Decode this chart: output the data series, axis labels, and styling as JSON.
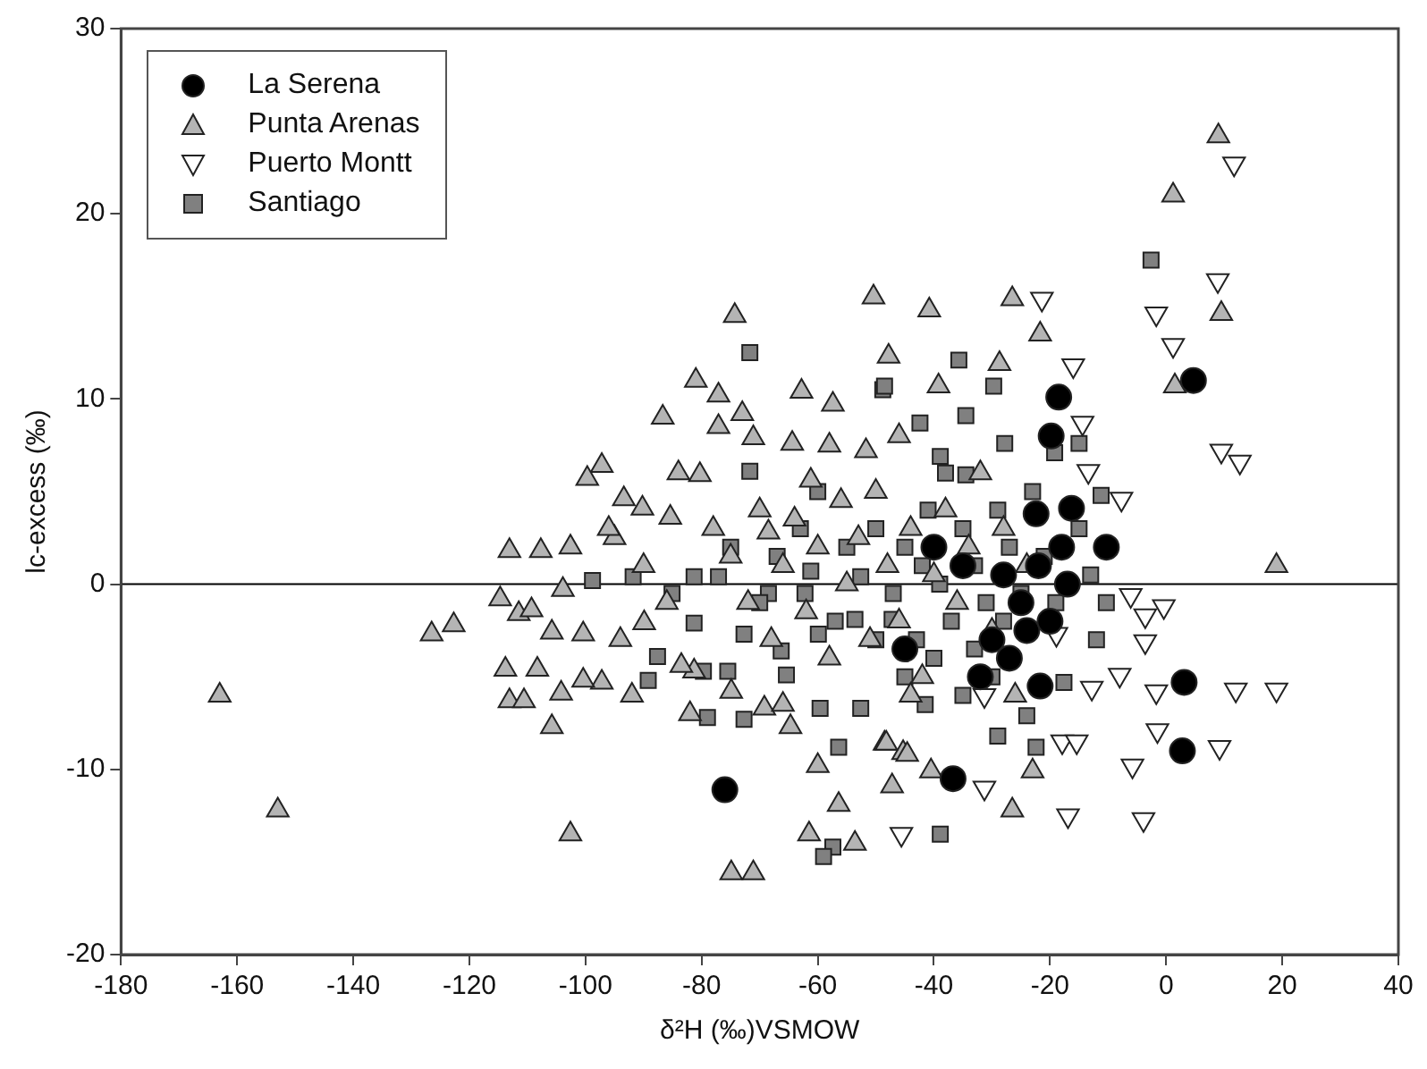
{
  "chart_data": {
    "type": "scatter",
    "xlabel": "δ²H (‰)VSMOW",
    "ylabel": "lc-excess (‰)",
    "xlim": [
      -180,
      40
    ],
    "xticks": [
      -180,
      -160,
      -140,
      -120,
      -100,
      -80,
      -60,
      -40,
      -20,
      0,
      20,
      40
    ],
    "ylim": [
      -20,
      30
    ],
    "yticks": [
      -20,
      -10,
      0,
      10,
      20,
      30
    ],
    "grid": false,
    "legend": "top left",
    "ref_lines": [
      {
        "axis": "y",
        "value": 0,
        "color": "#000000"
      }
    ],
    "series": [
      {
        "name": "La Serena",
        "color": "#000000",
        "marker": "circle",
        "x": [
          -76,
          -36.7,
          -18.5,
          4.7,
          -19.8,
          -16.3,
          -10.3,
          -22.4,
          -17,
          -21.7,
          3.1,
          2.8,
          -25,
          -28,
          -30,
          -32,
          -22,
          -45,
          -40,
          -35,
          -24,
          -27,
          -20,
          -18
        ],
        "values": [
          -11.1,
          -10.5,
          10.1,
          11.0,
          8.0,
          4.1,
          2.0,
          3.8,
          0,
          -5.5,
          -5.3,
          -9.0,
          -1,
          0.5,
          -3,
          -5,
          1,
          -3.5,
          2,
          1,
          -2.5,
          -4,
          -2,
          2
        ]
      },
      {
        "name": "Punta Arenas",
        "color": "#b4b4b4",
        "marker": "triangle",
        "x": [
          -163,
          -153,
          1.2,
          9.5,
          -21.7,
          -26.5,
          -40.8,
          1.5,
          -28.7,
          -39.2,
          -47.8,
          19,
          9,
          -74.3,
          -50.4,
          -81,
          -77.1,
          -86.7,
          -62.8,
          -57.4,
          -73,
          -77.1,
          -71.1,
          -64.4,
          -97.2,
          -99.7,
          -80.3,
          -93.4,
          -90.2,
          -113.1,
          -107.7,
          -102.6,
          -95,
          -85.4,
          -68.5,
          -61.2,
          -51.7,
          -126.5,
          -122.7,
          -114.7,
          -111.5,
          -109.3,
          -105.8,
          -100.4,
          -103.9,
          -113.8,
          -108.3,
          -113.1,
          -110.6,
          -104.2,
          -105.8,
          -102.6,
          -97.2,
          -100.4,
          -89.9,
          -74.9,
          -71.1,
          -60,
          -56.4,
          -61.5,
          -53.6,
          -48.5,
          -64.7,
          -81.3,
          -83.5,
          -74.9,
          -69.2,
          -45.3,
          -47.2,
          -48.2,
          -44.6,
          -40.5,
          -23,
          -26.5,
          -78,
          -75,
          -72,
          -70,
          -68,
          -66,
          -64,
          -62,
          -60,
          -58,
          -56,
          -55,
          -53,
          -51,
          -50,
          -48,
          -46,
          -44,
          -42,
          -40,
          -38,
          -36,
          -34,
          -32,
          -30,
          -28,
          -26,
          -24,
          -86,
          -90,
          -94,
          -96,
          -92,
          -84,
          -82,
          -66,
          -58,
          -46,
          -44
        ],
        "values": [
          -6,
          -12.2,
          21.0,
          14.6,
          13.5,
          15.4,
          14.8,
          10.7,
          11.9,
          10.7,
          12.3,
          1.0,
          24.2,
          14.5,
          15.5,
          11.0,
          10.2,
          9.0,
          10.4,
          9.7,
          9.2,
          8.5,
          7.9,
          7.6,
          6.4,
          5.7,
          5.9,
          4.6,
          4.1,
          1.8,
          1.8,
          2.0,
          2.5,
          3.6,
          2.8,
          5.6,
          7.2,
          -2.7,
          -2.2,
          -0.8,
          -1.6,
          -1.4,
          -2.6,
          -2.7,
          -0.3,
          -4.6,
          -4.6,
          -6.3,
          -6.3,
          -5.9,
          -7.7,
          -13.5,
          -5.3,
          -5.2,
          -2.1,
          -15.6,
          -15.6,
          -9.8,
          -11.9,
          -13.5,
          -14.0,
          -8.6,
          -7.7,
          -4.7,
          -4.4,
          -5.8,
          -6.7,
          -9.1,
          -10.9,
          -8.6,
          -9.2,
          -10.1,
          -10.1,
          -12.2,
          3,
          1.5,
          -1,
          4,
          -3,
          1,
          3.5,
          -1.5,
          2,
          -4,
          4.5,
          0,
          2.5,
          -3,
          5,
          1,
          -2,
          3,
          -5,
          0.5,
          4,
          -1,
          2,
          6,
          -2.5,
          3,
          -6,
          1,
          -1,
          1,
          -3,
          3,
          -6,
          6,
          -7,
          -6.5,
          7.5,
          8,
          -6
        ]
      },
      {
        "name": "Puerto Montt",
        "color": "#ffffff",
        "marker": "triangle-down",
        "x": [
          -21.4,
          -16,
          -1.7,
          1.2,
          8.9,
          9.5,
          12.7,
          11.7,
          -14.4,
          -13.4,
          -7.7,
          -6.1,
          -0.4,
          -3.6,
          -3.6,
          -8,
          -12.8,
          -1.7,
          12,
          19,
          -31.3,
          -1.5,
          9.2,
          -5.8,
          -17.9,
          -15.4,
          -31.3,
          -16.9,
          -3.9,
          -45.6,
          -18.9
        ],
        "values": [
          15.4,
          11.8,
          14.6,
          12.9,
          16.4,
          7.2,
          6.6,
          22.7,
          8.7,
          6.1,
          4.6,
          -0.6,
          -1.2,
          -1.7,
          -3.1,
          -4.9,
          -5.6,
          -5.8,
          -5.7,
          -5.7,
          -6,
          -7.9,
          -8.8,
          -9.8,
          -8.5,
          -8.5,
          -11,
          -12.5,
          -12.7,
          -13.5,
          -2.7
        ]
      },
      {
        "name": "Santiago",
        "color": "#808080",
        "marker": "square",
        "x": [
          -71.7,
          -48.8,
          -71.7,
          -2.6,
          -35.7,
          -29.7,
          -34.5,
          -27.8,
          -42.4,
          -15,
          -19.2,
          -11.2,
          -38.9,
          -34.5,
          -48.5,
          -10.3,
          -17.6,
          -24,
          -29,
          -22.4,
          -38.9,
          -41.5,
          -98.8,
          -91.8,
          -85.1,
          -81.3,
          -87.6,
          -89.2,
          -79,
          -72.7,
          -57.4,
          -59,
          -79.7,
          -75.5,
          -68.5,
          -62.2,
          -52.6,
          -56.4,
          -59.6,
          -72.7,
          -66.3,
          -81.3,
          -77.1,
          -61.2,
          -52.6,
          -47.2,
          -53.6,
          -59.9,
          -65.4,
          -50,
          -47,
          -45,
          -43,
          -41,
          -39,
          -37,
          -35,
          -33,
          -31,
          -29,
          -27,
          -25,
          -23,
          -21,
          -19,
          -15,
          -13,
          -12,
          -45,
          -40,
          -35,
          -30,
          -55,
          -57,
          -63,
          -67,
          -70,
          -75,
          -60,
          -50,
          -38,
          -33,
          -28,
          -42
        ],
        "values": [
          12.5,
          10.5,
          6.1,
          17.5,
          12.1,
          10.7,
          9.1,
          7.6,
          8.7,
          7.6,
          7.1,
          4.8,
          6.9,
          5.9,
          10.7,
          -1.0,
          -5.3,
          -7.1,
          -8.2,
          -8.8,
          -13.5,
          -6.5,
          0.2,
          0.4,
          -0.5,
          -2.1,
          -3.9,
          -5.2,
          -7.2,
          -7.3,
          -14.2,
          -14.7,
          -4.7,
          -4.7,
          -0.5,
          -0.5,
          -6.7,
          -8.8,
          -6.7,
          -2.7,
          -3.6,
          0.4,
          0.4,
          0.7,
          0.4,
          -1.9,
          -1.9,
          -2.7,
          -4.9,
          3,
          -0.5,
          2,
          -3,
          4,
          0,
          -2,
          3,
          1,
          -1,
          4,
          2,
          -0.5,
          5,
          1.5,
          -1,
          3,
          0.5,
          -3,
          -5,
          -4,
          -6,
          -5,
          2,
          -2,
          3,
          1.5,
          -1,
          2,
          5,
          -3,
          6,
          -3.5,
          -2,
          1
        ]
      }
    ]
  }
}
